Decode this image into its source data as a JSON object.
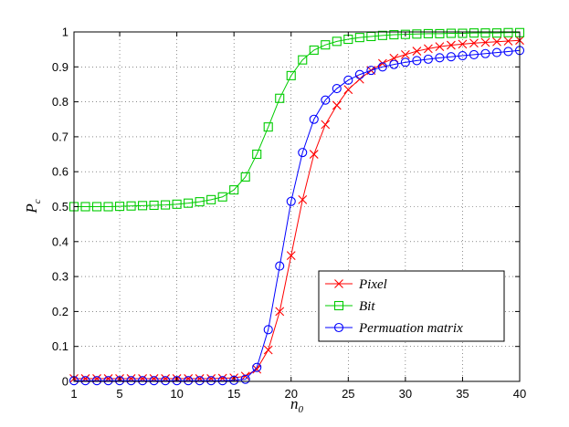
{
  "chart_data": {
    "type": "line",
    "title": "",
    "xlabel": "n",
    "xlabel_sub": "0",
    "ylabel": "P",
    "ylabel_sub": "c",
    "xlim": [
      1,
      40
    ],
    "ylim": [
      0,
      1
    ],
    "xticks": [
      1,
      5,
      10,
      15,
      20,
      25,
      30,
      35,
      40
    ],
    "yticks": [
      0,
      0.1,
      0.2,
      0.3,
      0.4,
      0.5,
      0.6,
      0.7,
      0.8,
      0.9,
      1
    ],
    "grid": true,
    "legend_position": "bottom-right",
    "x": [
      1,
      2,
      3,
      4,
      5,
      6,
      7,
      8,
      9,
      10,
      11,
      12,
      13,
      14,
      15,
      16,
      17,
      18,
      19,
      20,
      21,
      22,
      23,
      24,
      25,
      26,
      27,
      28,
      29,
      30,
      31,
      32,
      33,
      34,
      35,
      36,
      37,
      38,
      39,
      40
    ],
    "series": [
      {
        "name": "Pixel",
        "color": "#ff0000",
        "marker": "x",
        "values": [
          0.008,
          0.008,
          0.008,
          0.008,
          0.008,
          0.008,
          0.008,
          0.008,
          0.008,
          0.008,
          0.008,
          0.008,
          0.008,
          0.009,
          0.01,
          0.015,
          0.035,
          0.09,
          0.2,
          0.36,
          0.52,
          0.65,
          0.735,
          0.79,
          0.835,
          0.865,
          0.89,
          0.91,
          0.925,
          0.935,
          0.945,
          0.952,
          0.958,
          0.962,
          0.965,
          0.968,
          0.97,
          0.972,
          0.974,
          0.976
        ]
      },
      {
        "name": "Bit",
        "color": "#00cc00",
        "marker": "square",
        "values": [
          0.5,
          0.5,
          0.5,
          0.5,
          0.501,
          0.502,
          0.503,
          0.504,
          0.505,
          0.507,
          0.51,
          0.514,
          0.52,
          0.528,
          0.548,
          0.585,
          0.65,
          0.728,
          0.81,
          0.875,
          0.92,
          0.948,
          0.963,
          0.973,
          0.979,
          0.984,
          0.987,
          0.99,
          0.992,
          0.993,
          0.994,
          0.995,
          0.995,
          0.996,
          0.996,
          0.997,
          0.997,
          0.997,
          0.998,
          0.998
        ]
      },
      {
        "name": "Permuation matrix",
        "color": "#0000ff",
        "marker": "circle",
        "values": [
          0.002,
          0.002,
          0.002,
          0.002,
          0.002,
          0.002,
          0.002,
          0.002,
          0.002,
          0.002,
          0.002,
          0.002,
          0.002,
          0.002,
          0.003,
          0.006,
          0.04,
          0.148,
          0.33,
          0.515,
          0.655,
          0.75,
          0.805,
          0.838,
          0.862,
          0.878,
          0.89,
          0.9,
          0.907,
          0.913,
          0.918,
          0.922,
          0.926,
          0.929,
          0.932,
          0.935,
          0.938,
          0.941,
          0.944,
          0.947
        ]
      }
    ]
  }
}
